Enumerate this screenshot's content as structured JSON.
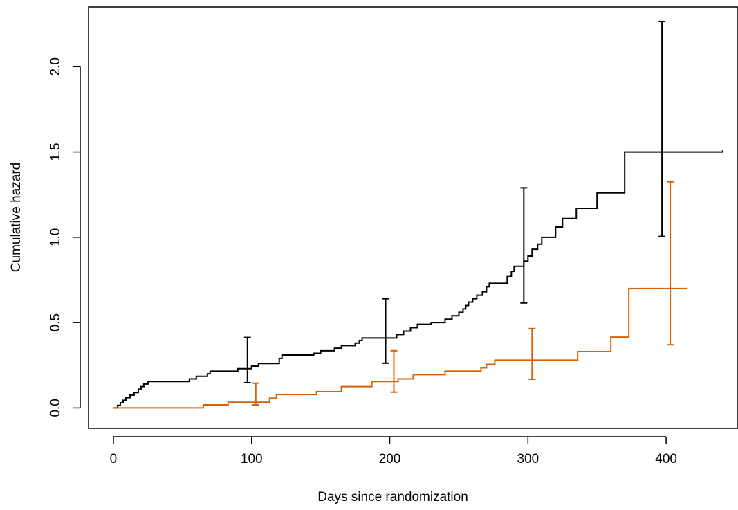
{
  "chart_data": {
    "type": "line",
    "step": true,
    "title": "",
    "xlabel": "Days since randomization",
    "ylabel": "Cumulative hazard",
    "xlim": [
      -18,
      452
    ],
    "ylim": [
      -0.12,
      2.35
    ],
    "xticks": [
      0,
      100,
      200,
      300,
      400
    ],
    "yticks": [
      0.0,
      0.5,
      1.0,
      1.5,
      2.0
    ],
    "xtick_labels": [
      "0",
      "100",
      "200",
      "300",
      "400"
    ],
    "ytick_labels": [
      "0.0",
      "0.5",
      "1.0",
      "1.5",
      "2.0"
    ],
    "grid": false,
    "legend": "none",
    "series": [
      {
        "color": "#000000",
        "points": [
          [
            0,
            0
          ],
          [
            3,
            0.015
          ],
          [
            5,
            0.03
          ],
          [
            7,
            0.045
          ],
          [
            9,
            0.06
          ],
          [
            12,
            0.075
          ],
          [
            15,
            0.09
          ],
          [
            18,
            0.11
          ],
          [
            20,
            0.125
          ],
          [
            22,
            0.14
          ],
          [
            25,
            0.155
          ],
          [
            55,
            0.17
          ],
          [
            60,
            0.185
          ],
          [
            68,
            0.2
          ],
          [
            70,
            0.215
          ],
          [
            90,
            0.23
          ],
          [
            100,
            0.245
          ],
          [
            105,
            0.26
          ],
          [
            120,
            0.29
          ],
          [
            122,
            0.31
          ],
          [
            145,
            0.32
          ],
          [
            150,
            0.335
          ],
          [
            160,
            0.35
          ],
          [
            165,
            0.365
          ],
          [
            175,
            0.38
          ],
          [
            178,
            0.395
          ],
          [
            180,
            0.41
          ],
          [
            205,
            0.43
          ],
          [
            210,
            0.45
          ],
          [
            215,
            0.47
          ],
          [
            220,
            0.49
          ],
          [
            230,
            0.5
          ],
          [
            240,
            0.52
          ],
          [
            245,
            0.54
          ],
          [
            250,
            0.56
          ],
          [
            253,
            0.58
          ],
          [
            255,
            0.6
          ],
          [
            257,
            0.62
          ],
          [
            260,
            0.64
          ],
          [
            263,
            0.66
          ],
          [
            267,
            0.68
          ],
          [
            270,
            0.71
          ],
          [
            272,
            0.73
          ],
          [
            285,
            0.77
          ],
          [
            288,
            0.8
          ],
          [
            290,
            0.83
          ],
          [
            297,
            0.86
          ],
          [
            300,
            0.89
          ],
          [
            303,
            0.93
          ],
          [
            307,
            0.96
          ],
          [
            310,
            1.0
          ],
          [
            320,
            1.06
          ],
          [
            325,
            1.11
          ],
          [
            335,
            1.17
          ],
          [
            350,
            1.26
          ],
          [
            370,
            1.5
          ],
          [
            441,
            1.51
          ]
        ],
        "error_bars": [
          {
            "x": 97,
            "y": 0.233,
            "lower": 0.148,
            "upper": 0.413
          },
          {
            "x": 197,
            "y": 0.41,
            "lower": 0.262,
            "upper": 0.64
          },
          {
            "x": 297,
            "y": 0.89,
            "lower": 0.615,
            "upper": 1.29
          },
          {
            "x": 397,
            "y": 1.51,
            "lower": 1.005,
            "upper": 2.265
          }
        ]
      },
      {
        "color": "#d95f02",
        "points": [
          [
            0,
            0
          ],
          [
            65,
            0.018
          ],
          [
            83,
            0.033
          ],
          [
            113,
            0.057
          ],
          [
            118,
            0.078
          ],
          [
            147,
            0.095
          ],
          [
            165,
            0.125
          ],
          [
            187,
            0.155
          ],
          [
            206,
            0.17
          ],
          [
            217,
            0.195
          ],
          [
            240,
            0.215
          ],
          [
            266,
            0.235
          ],
          [
            270,
            0.255
          ],
          [
            276,
            0.28
          ],
          [
            336,
            0.33
          ],
          [
            360,
            0.415
          ],
          [
            373,
            0.7
          ],
          [
            415,
            0.7
          ]
        ],
        "error_bars": [
          {
            "x": 103,
            "y": 0.035,
            "lower": 0.018,
            "upper": 0.145
          },
          {
            "x": 203,
            "y": 0.16,
            "lower": 0.092,
            "upper": 0.335
          },
          {
            "x": 303,
            "y": 0.28,
            "lower": 0.168,
            "upper": 0.465
          },
          {
            "x": 403,
            "y": 0.7,
            "lower": 0.37,
            "upper": 1.325
          }
        ]
      }
    ]
  }
}
